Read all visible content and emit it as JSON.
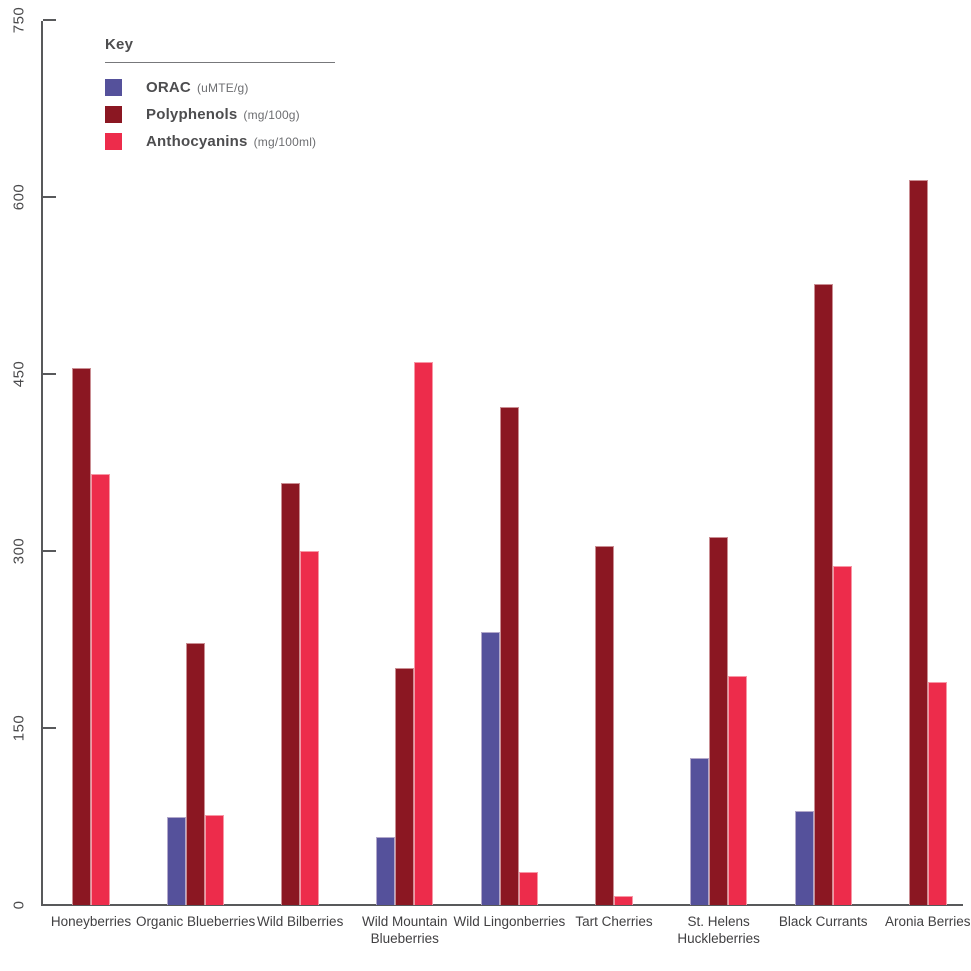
{
  "chart_data": {
    "type": "bar",
    "title": "",
    "legend_title": "Key",
    "legend_position": "top-left",
    "grid": false,
    "ylim": [
      0,
      750
    ],
    "yticks": [
      0,
      150,
      300,
      450,
      600,
      750
    ],
    "categories": [
      "Honeyberries",
      "Organic Blueberries",
      "Wild Bilberries",
      "Wild Mountain Blueberries",
      "Wild Lingonberries",
      "Tart Cherries",
      "St. Helens Huckleberries",
      "Black Currants",
      "Aronia Berries"
    ],
    "series": [
      {
        "name": "ORAC",
        "unit": "(uMTE/g)",
        "color": "#55519b",
        "values": [
          0,
          75,
          0,
          58,
          231,
          0,
          125,
          80,
          0
        ]
      },
      {
        "name": "Polyphenols",
        "unit": "(mg/100g)",
        "color": "#8b1722",
        "values": [
          455,
          222,
          358,
          201,
          422,
          304,
          312,
          526,
          614
        ]
      },
      {
        "name": "Anthocyanins",
        "unit": "(mg/100ml)",
        "color": "#ed2c4b",
        "values": [
          365,
          76,
          300,
          460,
          28,
          8,
          194,
          287,
          189
        ]
      }
    ]
  },
  "legend": {
    "title": "Key"
  }
}
